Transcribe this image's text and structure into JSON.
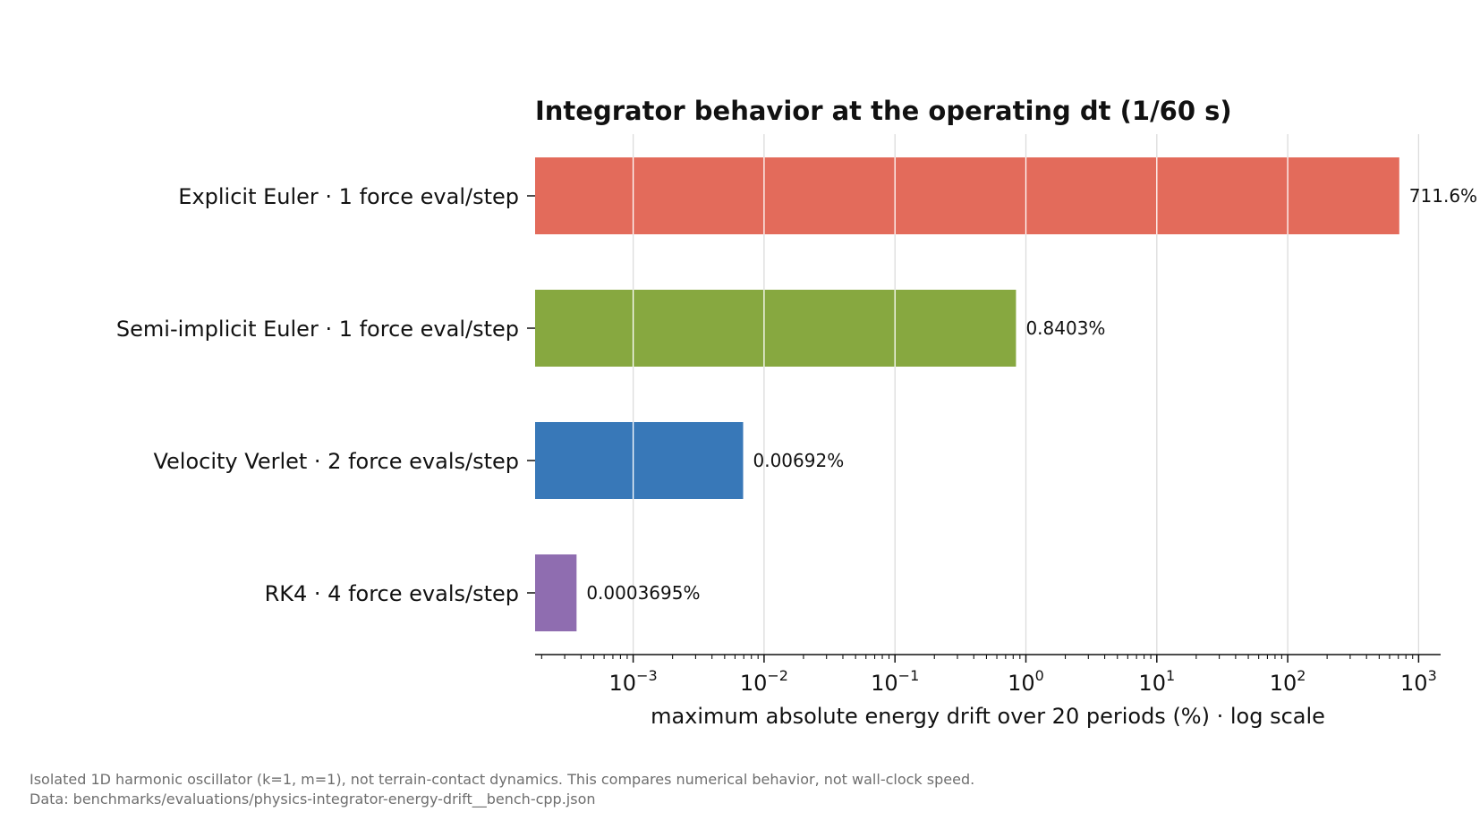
{
  "chart_data": {
    "type": "bar",
    "orientation": "horizontal",
    "title": "Integrator behavior at the operating dt (1/60 s)",
    "xlabel": "maximum absolute energy drift over 20 periods (%) · log scale",
    "ylabel": "",
    "x_scale": "log",
    "xlim": [
      0.0002,
      1200
    ],
    "grid": "x-major",
    "legend": "none",
    "categories": [
      "Explicit Euler · 1 force eval/step",
      "Semi-implicit Euler · 1 force eval/step",
      "Velocity Verlet · 2 force evals/step",
      "RK4 · 4 force evals/step"
    ],
    "values": [
      711.6,
      0.8403,
      0.00692,
      0.0003695
    ],
    "value_labels": [
      "711.6%",
      "0.8403%",
      "0.00692%",
      "0.0003695%"
    ],
    "colors": [
      "#e36b5b",
      "#87a840",
      "#3878b8",
      "#8f6db0"
    ],
    "x_ticks": [
      {
        "value": 0.001,
        "base": "10",
        "exp": "−3"
      },
      {
        "value": 0.01,
        "base": "10",
        "exp": "−2"
      },
      {
        "value": 0.1,
        "base": "10",
        "exp": "−1"
      },
      {
        "value": 1,
        "base": "10",
        "exp": "0"
      },
      {
        "value": 10,
        "base": "10",
        "exp": "1"
      },
      {
        "value": 100,
        "base": "10",
        "exp": "2"
      },
      {
        "value": 1000,
        "base": "10",
        "exp": "3"
      }
    ]
  },
  "footnote": {
    "line1": "Isolated 1D harmonic oscillator (k=1, m=1), not terrain-contact dynamics. This compares numerical behavior, not wall-clock speed.",
    "line2": "Data: benchmarks/evaluations/physics-integrator-energy-drift__bench-cpp.json"
  }
}
